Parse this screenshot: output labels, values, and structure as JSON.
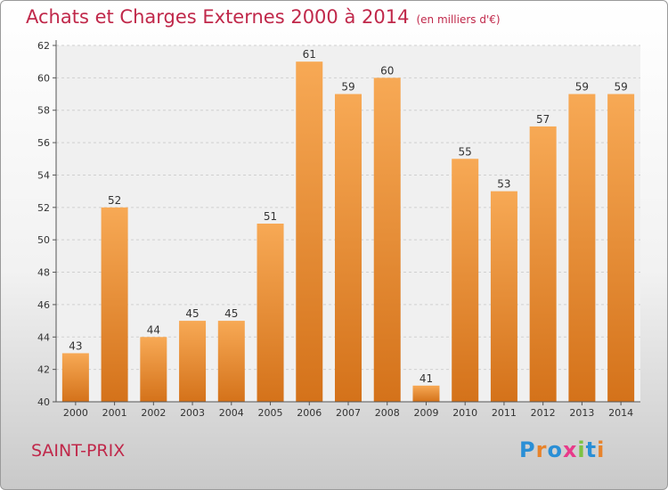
{
  "chart_data": {
    "type": "bar",
    "title": "Achats et Charges Externes 2000 à 2014",
    "unit": "(en milliers d'€)",
    "categories": [
      "2000",
      "2001",
      "2002",
      "2003",
      "2004",
      "2005",
      "2006",
      "2007",
      "2008",
      "2009",
      "2010",
      "2011",
      "2012",
      "2013",
      "2014"
    ],
    "values": [
      43,
      52,
      44,
      45,
      45,
      51,
      61,
      59,
      60,
      41,
      55,
      53,
      57,
      59,
      59
    ],
    "yticks": [
      "40",
      "42",
      "44",
      "46",
      "48",
      "50",
      "52",
      "54",
      "56",
      "58",
      "60",
      "62"
    ],
    "ylim": [
      40,
      62
    ],
    "grid": true,
    "xlabel": "",
    "ylabel": "",
    "colors": {
      "bar_light": "#f7a955",
      "bar_dark": "#d4721a",
      "title": "#c0284a"
    }
  },
  "commune": "SAINT-PRIX",
  "logo": {
    "letters": [
      "P",
      "r",
      "o",
      "x",
      "i",
      "t",
      "i"
    ],
    "colors": [
      "#2a8fd6",
      "#e8832a",
      "#2a8fd6",
      "#e83a8a",
      "#7cc242",
      "#2a8fd6",
      "#e8832a"
    ]
  }
}
